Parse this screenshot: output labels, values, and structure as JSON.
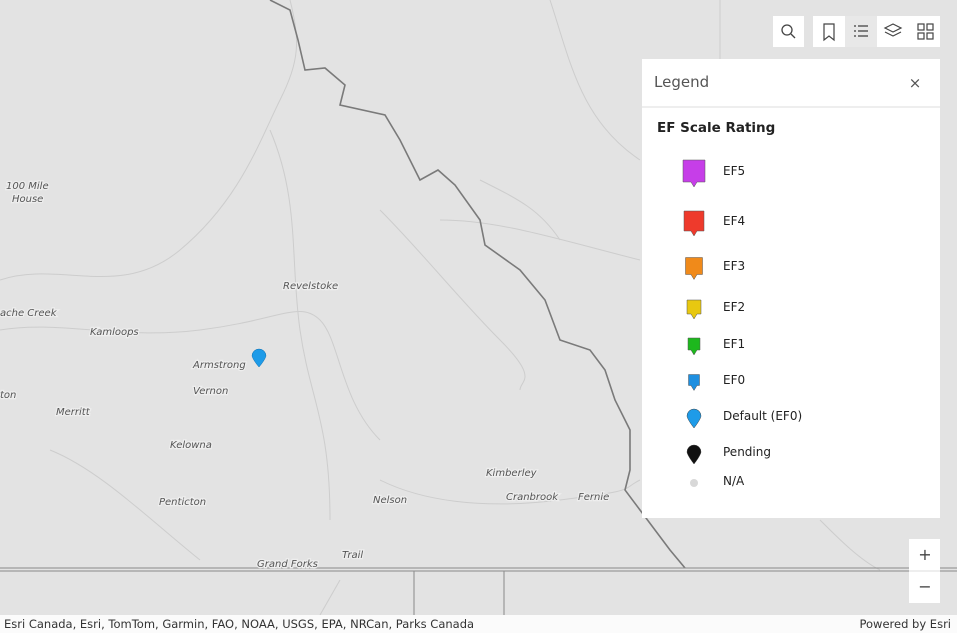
{
  "map": {
    "places": [
      "100 Mile",
      "House",
      "ache Creek",
      "Kamloops",
      "Revelstoke",
      "Armstrong",
      "Vernon",
      "ton",
      "Merritt",
      "Kelowna",
      "Penticton",
      "Nelson",
      "Kimberley",
      "Cranbrook",
      "Fernie",
      "Trail",
      "Grand Forks"
    ]
  },
  "legend": {
    "title": "Legend",
    "close": "×",
    "section": "EF Scale Rating",
    "items": [
      "EF5",
      "EF4",
      "EF3",
      "EF2",
      "EF1",
      "EF0",
      "Default (EF0)",
      "Pending",
      "N/A"
    ]
  },
  "controls": {
    "zoom_in": "+",
    "zoom_out": "−"
  },
  "attribution": {
    "sources": "Esri Canada, Esri, TomTom, Garmin, FAO, NOAA, USGS, EPA, NRCan, Parks Canada",
    "powered": "Powered by Esri"
  }
}
